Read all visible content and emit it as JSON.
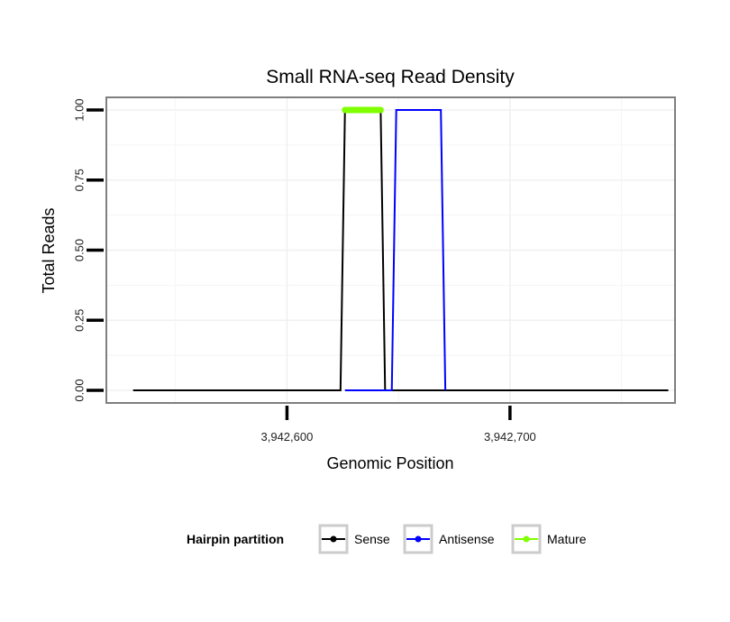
{
  "chart_data": {
    "type": "line",
    "title": "Small RNA-seq Read Density",
    "xlabel": "Genomic Position",
    "ylabel": "Total Reads",
    "xlim": [
      3942519,
      3942774
    ],
    "ylim": [
      -0.045,
      1.045
    ],
    "x_ticks": [
      {
        "value": 3942600,
        "label": "3,942,600"
      },
      {
        "value": 3942700,
        "label": "3,942,700"
      }
    ],
    "y_ticks": [
      {
        "value": 0,
        "label": "0.00"
      },
      {
        "value": 0.25,
        "label": "0.25"
      },
      {
        "value": 0.5,
        "label": "0.50"
      },
      {
        "value": 0.75,
        "label": "0.75"
      },
      {
        "value": 1,
        "label": "1.00"
      }
    ],
    "grid": true,
    "legend_position": "bottom",
    "legend_title": "Hairpin partition",
    "series": [
      {
        "name": "Sense",
        "color": "#000000",
        "points": [
          [
            3942531,
            0
          ],
          [
            3942624,
            0
          ],
          [
            3942626,
            1
          ],
          [
            3942642,
            1
          ],
          [
            3942644,
            0
          ],
          [
            3942771,
            0
          ]
        ]
      },
      {
        "name": "Antisense",
        "color": "#0000ff",
        "points": [
          [
            3942626,
            0
          ],
          [
            3942647,
            0
          ],
          [
            3942649,
            1
          ],
          [
            3942669,
            1
          ],
          [
            3942671,
            0
          ]
        ]
      },
      {
        "name": "Mature",
        "color": "#7fff00",
        "points": [
          [
            3942626,
            1
          ],
          [
            3942642,
            1
          ]
        ]
      }
    ]
  }
}
